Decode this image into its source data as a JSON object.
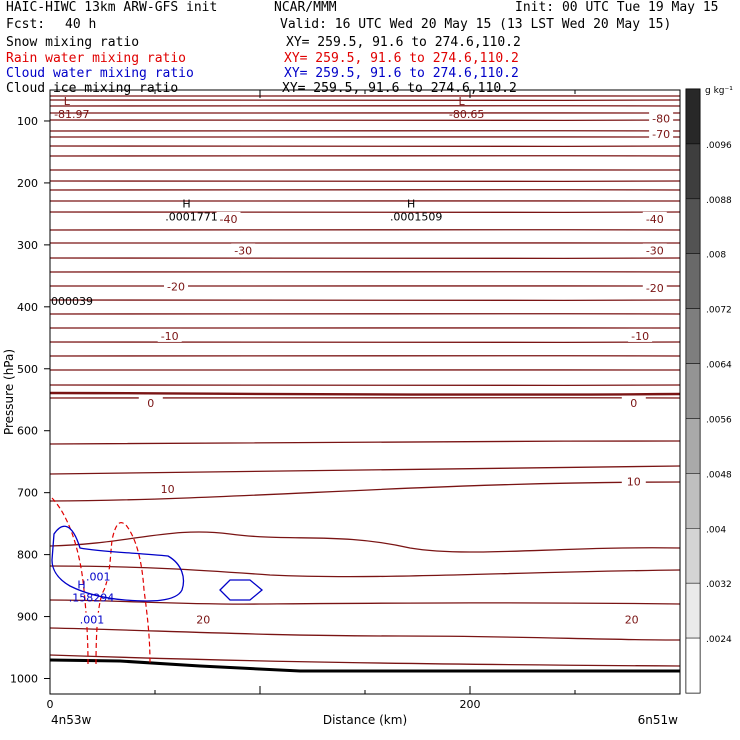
{
  "header": {
    "model": "HAIC-HIWC 13km ARW-GFS init",
    "center": "NCAR/MMM",
    "init": "Init: 00 UTC Tue 19 May 15",
    "fcst_label": "Fcst:",
    "fcst_value": "40 h",
    "valid": "Valid: 16 UTC Wed 20 May 15 (13 LST Wed 20 May 15)"
  },
  "fields": [
    {
      "name": "Snow mixing ratio",
      "xy": "XY= 259.5, 91.6 to 274.6,110.2",
      "color": "#000000"
    },
    {
      "name": "Rain water mixing ratio",
      "xy": "XY= 259.5, 91.6 to 274.6,110.2",
      "color": "#e00000"
    },
    {
      "name": "Cloud water mixing ratio",
      "xy": "XY= 259.5, 91.6 to 274.6,110.2",
      "color": "#0000c8"
    },
    {
      "name": "Cloud ice mixing ratio",
      "xy": "XY= 259.5, 91.6 to 274.6,110.2",
      "color": "#000000"
    }
  ],
  "chart_data": {
    "type": "contour",
    "xlabel": "Distance (km)",
    "ylabel": "Pressure (hPa)",
    "xlim": [
      0,
      300
    ],
    "ylim": [
      1025,
      50
    ],
    "x_ticks": [
      {
        "value": 0,
        "label": "0"
      },
      {
        "value": 200,
        "label": "200"
      }
    ],
    "y_ticks": [
      100,
      200,
      300,
      400,
      500,
      600,
      700,
      800,
      900,
      1000
    ],
    "left_endpoint": "4n53w",
    "right_endpoint": "6n51w",
    "temperature_labels": [
      {
        "x": 291,
        "p": 96,
        "text": "-80"
      },
      {
        "x": 291,
        "p": 121,
        "text": "-70"
      },
      {
        "x": 85,
        "p": 258,
        "text": "-40"
      },
      {
        "x": 288,
        "p": 258,
        "text": "-40"
      },
      {
        "x": 92,
        "p": 309,
        "text": "-30"
      },
      {
        "x": 288,
        "p": 309,
        "text": "-30"
      },
      {
        "x": 60,
        "p": 367,
        "text": "-20"
      },
      {
        "x": 288,
        "p": 370,
        "text": "-20"
      },
      {
        "x": 57,
        "p": 447,
        "text": "-10"
      },
      {
        "x": 281,
        "p": 447,
        "text": "-10"
      },
      {
        "x": 48,
        "p": 555,
        "text": "0"
      },
      {
        "x": 278,
        "p": 555,
        "text": "0"
      },
      {
        "x": 56,
        "p": 694,
        "text": "10"
      },
      {
        "x": 278,
        "p": 682,
        "text": "10"
      },
      {
        "x": 73,
        "p": 905,
        "text": "20"
      },
      {
        "x": 277,
        "p": 905,
        "text": "20"
      }
    ],
    "extrema": [
      {
        "kind": "L",
        "x": 8,
        "p": 74,
        "value": "-81.97"
      },
      {
        "kind": "L",
        "x": 196,
        "p": 74,
        "value": "-80.65"
      },
      {
        "kind": "H",
        "x": 65,
        "p": 240,
        "value": ".0001771"
      },
      {
        "kind": "H",
        "x": 172,
        "p": 240,
        "value": ".0001509"
      },
      {
        "kind": "H",
        "x": 15,
        "p": 855,
        "value": ".158294"
      }
    ],
    "edge_value": {
      "p": 397,
      "text": "000039"
    },
    "cloud_water_labels": [
      {
        "x": 23,
        "p": 835,
        "text": ".001"
      },
      {
        "x": 20,
        "p": 905,
        "text": ".001"
      }
    ],
    "colorbar": {
      "units": "g kg⁻¹",
      "labels": [
        ".0096",
        ".0088",
        ".008",
        ".0072",
        ".0064",
        ".0056",
        ".0048",
        ".004",
        ".0032",
        ".0024"
      ]
    }
  }
}
